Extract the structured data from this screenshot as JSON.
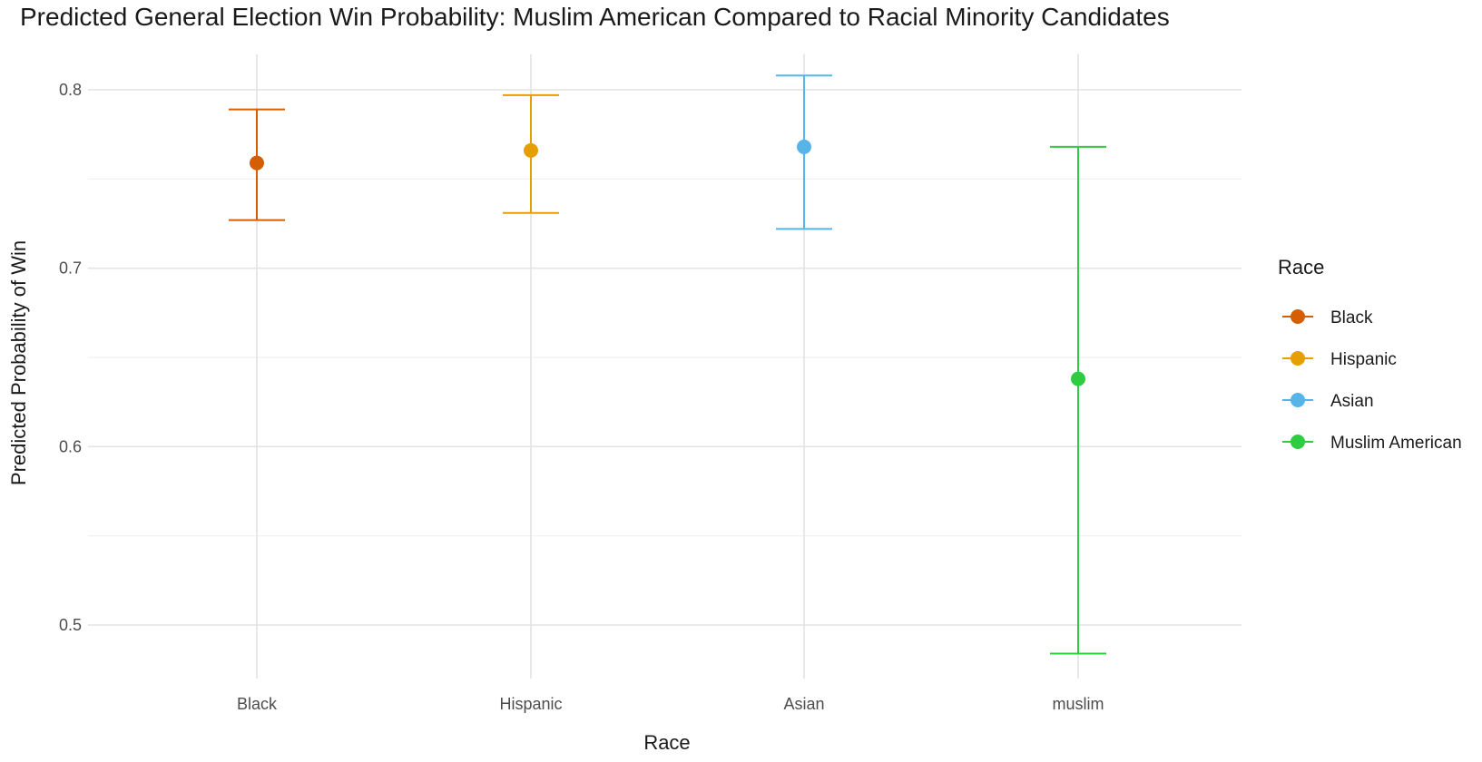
{
  "chart_data": {
    "type": "scatter",
    "title": "Predicted General Election Win Probability: Muslim American Compared to Racial Minority Candidates",
    "xlabel": "Race",
    "ylabel": "Predicted Probability of Win",
    "categories": [
      "Black",
      "Hispanic",
      "Asian",
      "muslim"
    ],
    "ylim": [
      0.47,
      0.82
    ],
    "yticks": [
      0.5,
      0.6,
      0.7,
      0.8
    ],
    "grid": true,
    "legend": {
      "title": "Race",
      "placement": "right",
      "entries": [
        "Black",
        "Hispanic",
        "Asian",
        "Muslim American"
      ]
    },
    "series": [
      {
        "name": "Black",
        "category": "Black",
        "value": 0.759,
        "lower": 0.727,
        "upper": 0.789,
        "color": "#D55E00"
      },
      {
        "name": "Hispanic",
        "category": "Hispanic",
        "value": 0.766,
        "lower": 0.731,
        "upper": 0.797,
        "color": "#E69F00"
      },
      {
        "name": "Asian",
        "category": "Asian",
        "value": 0.768,
        "lower": 0.722,
        "upper": 0.808,
        "color": "#56B4E9"
      },
      {
        "name": "Muslim American",
        "category": "muslim",
        "value": 0.638,
        "lower": 0.484,
        "upper": 0.768,
        "color": "#2ECC40"
      }
    ]
  }
}
